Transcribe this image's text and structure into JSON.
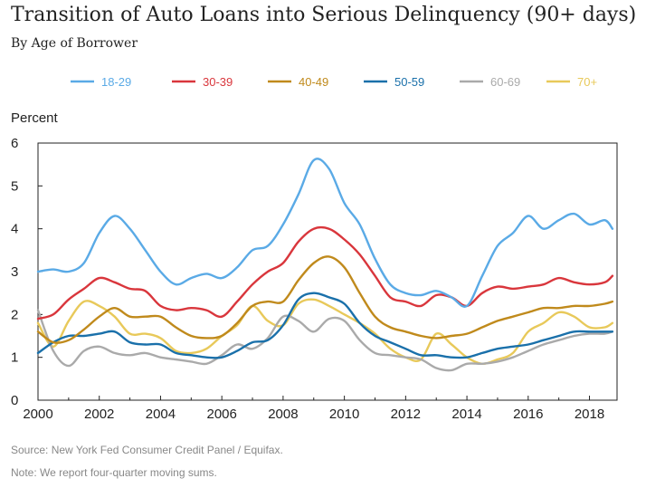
{
  "chart_data": {
    "type": "line",
    "title": "Transition of Auto Loans into Serious Delinquency (90+ days)",
    "subtitle": "By Age of Borrower",
    "ylabel": "Percent",
    "xlabel": "",
    "xlim": [
      2000,
      2018.9
    ],
    "ylim": [
      0,
      6
    ],
    "yticks": [
      "0",
      "1",
      "2",
      "3",
      "4",
      "5",
      "6"
    ],
    "xticks": [
      "2000",
      "2002",
      "2004",
      "2006",
      "2008",
      "2010",
      "2012",
      "2014",
      "2016",
      "2018"
    ],
    "grid": false,
    "legend_position": "top",
    "x": [
      2000,
      2000.5,
      2001,
      2001.5,
      2002,
      2002.5,
      2003,
      2003.5,
      2004,
      2004.5,
      2005,
      2005.5,
      2006,
      2006.5,
      2007,
      2007.5,
      2008,
      2008.5,
      2009,
      2009.5,
      2010,
      2010.5,
      2011,
      2011.5,
      2012,
      2012.5,
      2013,
      2013.5,
      2014,
      2014.5,
      2015,
      2015.5,
      2016,
      2016.5,
      2017,
      2017.5,
      2018,
      2018.5,
      2018.75
    ],
    "series": [
      {
        "name": "18-29",
        "color": "#5aaae6",
        "values": [
          3.0,
          3.05,
          3.0,
          3.2,
          3.9,
          4.3,
          4.0,
          3.5,
          3.0,
          2.7,
          2.85,
          2.95,
          2.85,
          3.1,
          3.5,
          3.6,
          4.1,
          4.8,
          5.6,
          5.4,
          4.6,
          4.1,
          3.3,
          2.7,
          2.5,
          2.45,
          2.55,
          2.4,
          2.2,
          2.9,
          3.6,
          3.9,
          4.3,
          4.0,
          4.2,
          4.35,
          4.1,
          4.2,
          4.0
        ]
      },
      {
        "name": "30-39",
        "color": "#d9363c",
        "values": [
          1.9,
          2.0,
          2.35,
          2.6,
          2.85,
          2.75,
          2.6,
          2.55,
          2.2,
          2.1,
          2.15,
          2.1,
          1.95,
          2.3,
          2.7,
          3.0,
          3.2,
          3.7,
          4.0,
          4.0,
          3.75,
          3.4,
          2.9,
          2.4,
          2.3,
          2.2,
          2.45,
          2.4,
          2.2,
          2.5,
          2.65,
          2.6,
          2.65,
          2.7,
          2.85,
          2.75,
          2.7,
          2.75,
          2.9
        ]
      },
      {
        "name": "40-49",
        "color": "#c08a1c",
        "values": [
          1.6,
          1.35,
          1.4,
          1.65,
          1.95,
          2.15,
          1.95,
          1.95,
          1.95,
          1.7,
          1.5,
          1.45,
          1.5,
          1.8,
          2.2,
          2.3,
          2.3,
          2.8,
          3.2,
          3.35,
          3.1,
          2.5,
          1.95,
          1.7,
          1.6,
          1.5,
          1.45,
          1.5,
          1.55,
          1.7,
          1.85,
          1.95,
          2.05,
          2.15,
          2.15,
          2.2,
          2.2,
          2.25,
          2.3
        ]
      },
      {
        "name": "50-59",
        "color": "#1a70aa",
        "values": [
          1.1,
          1.35,
          1.5,
          1.5,
          1.55,
          1.6,
          1.35,
          1.3,
          1.3,
          1.1,
          1.05,
          1.0,
          1.0,
          1.15,
          1.35,
          1.4,
          1.75,
          2.35,
          2.5,
          2.4,
          2.25,
          1.8,
          1.5,
          1.35,
          1.2,
          1.05,
          1.05,
          1.0,
          1.0,
          1.1,
          1.2,
          1.25,
          1.3,
          1.4,
          1.5,
          1.6,
          1.6,
          1.6,
          1.6
        ]
      },
      {
        "name": "60-69",
        "color": "#aaaaaa",
        "values": [
          2.1,
          1.15,
          0.8,
          1.15,
          1.25,
          1.1,
          1.05,
          1.1,
          1.0,
          0.95,
          0.9,
          0.85,
          1.05,
          1.3,
          1.2,
          1.45,
          1.95,
          1.85,
          1.6,
          1.9,
          1.85,
          1.4,
          1.1,
          1.05,
          1.0,
          0.95,
          0.75,
          0.7,
          0.85,
          0.85,
          0.9,
          1.0,
          1.15,
          1.3,
          1.4,
          1.5,
          1.55,
          1.55,
          1.6
        ]
      },
      {
        "name": "70+",
        "color": "#e8c95a",
        "values": [
          1.8,
          1.25,
          1.85,
          2.3,
          2.2,
          1.95,
          1.55,
          1.55,
          1.45,
          1.15,
          1.1,
          1.2,
          1.5,
          1.75,
          2.2,
          1.85,
          1.75,
          2.25,
          2.35,
          2.2,
          2.0,
          1.8,
          1.55,
          1.2,
          1.0,
          0.95,
          1.55,
          1.3,
          1.0,
          0.85,
          0.95,
          1.1,
          1.6,
          1.8,
          2.05,
          1.95,
          1.7,
          1.7,
          1.8
        ]
      }
    ]
  },
  "footer": {
    "source": "Source: New York Fed Consumer Credit Panel / Equifax.",
    "note": "Note: We report four-quarter moving sums."
  }
}
